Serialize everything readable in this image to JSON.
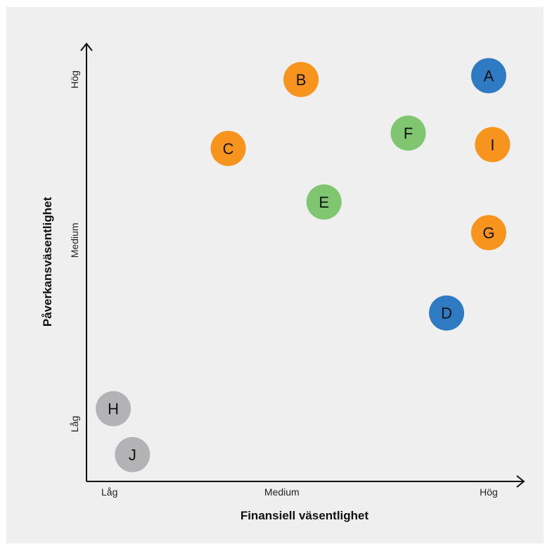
{
  "chart_data": {
    "type": "scatter",
    "title": "",
    "xlabel": "Finansiell väsentlighet",
    "ylabel": "Påverkansväsentlighet",
    "x_ticks": [
      {
        "label": "Låg",
        "value": 0.5
      },
      {
        "label": "Medium",
        "value": 5
      },
      {
        "label": "Hög",
        "value": 10.4
      }
    ],
    "y_ticks": [
      {
        "label": "Låg",
        "value": 1.4
      },
      {
        "label": "Medium",
        "value": 6.2
      },
      {
        "label": "Hög",
        "value": 10.4
      }
    ],
    "xlim": [
      -0.1,
      11.3
    ],
    "ylim": [
      -0.1,
      11.3
    ],
    "grid": false,
    "colors": {
      "blue": "#2e7bc4",
      "orange": "#f7941d",
      "green": "#80c670",
      "gray": "#b3b3b5"
    },
    "points": [
      {
        "label": "A",
        "x": 10.4,
        "y": 10.5,
        "color": "blue"
      },
      {
        "label": "B",
        "x": 5.5,
        "y": 10.4,
        "color": "orange"
      },
      {
        "label": "C",
        "x": 3.6,
        "y": 8.6,
        "color": "orange"
      },
      {
        "label": "D",
        "x": 9.3,
        "y": 4.3,
        "color": "blue"
      },
      {
        "label": "E",
        "x": 6.1,
        "y": 7.2,
        "color": "green"
      },
      {
        "label": "F",
        "x": 8.3,
        "y": 9.0,
        "color": "green"
      },
      {
        "label": "G",
        "x": 10.4,
        "y": 6.4,
        "color": "orange"
      },
      {
        "label": "H",
        "x": 0.6,
        "y": 1.8,
        "color": "gray"
      },
      {
        "label": "I",
        "x": 10.5,
        "y": 8.7,
        "color": "orange"
      },
      {
        "label": "J",
        "x": 1.1,
        "y": 0.6,
        "color": "gray"
      }
    ]
  }
}
